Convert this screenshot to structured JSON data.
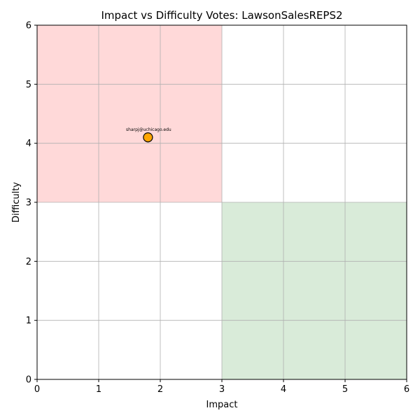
{
  "chart_data": {
    "type": "scatter",
    "title": "Impact vs Difficulty Votes: LawsonSalesREPS2",
    "xlabel": "Impact",
    "ylabel": "Difficulty",
    "xlim": [
      0,
      6
    ],
    "ylim": [
      0,
      6
    ],
    "xticks": [
      "0",
      "1",
      "2",
      "3",
      "4",
      "5",
      "6"
    ],
    "yticks": [
      "0",
      "1",
      "2",
      "3",
      "4",
      "5",
      "6"
    ],
    "grid": true,
    "regions": [
      {
        "x": [
          0,
          3
        ],
        "y": [
          3,
          6
        ],
        "color": "#ffd9d9"
      },
      {
        "x": [
          3,
          6
        ],
        "y": [
          0,
          3
        ],
        "color": "#d9ebd9"
      }
    ],
    "points": [
      {
        "x": 1.8,
        "y": 4.1,
        "label": "sharpj@uchicago.edu",
        "color": "#ffa500",
        "edge_color": "#000000"
      }
    ]
  }
}
